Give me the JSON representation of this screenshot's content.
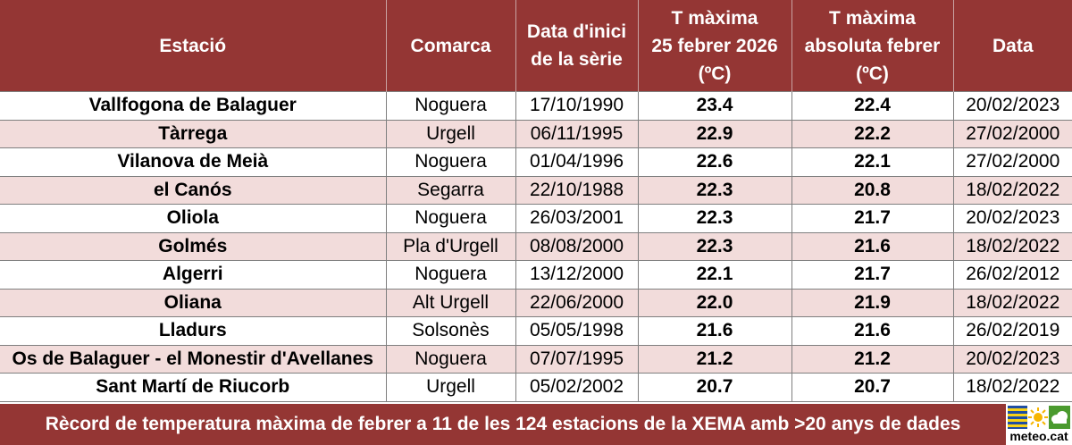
{
  "headers": {
    "station": "Estació",
    "county": "Comarca",
    "start_line1": "Data d'inici",
    "start_line2": "de la sèrie",
    "tmax_line1": "T màxima",
    "tmax_line2": "25 febrer 2026",
    "tmax_line3": "(ºC)",
    "tabs_line1": "T màxima",
    "tabs_line2": "absoluta febrer",
    "tabs_line3": "(ºC)",
    "date": "Data"
  },
  "rows": [
    {
      "station": "Vallfogona de Balaguer",
      "county": "Noguera",
      "start": "17/10/1990",
      "tmax": "23.4",
      "tabs": "22.4",
      "date": "20/02/2023"
    },
    {
      "station": "Tàrrega",
      "county": "Urgell",
      "start": "06/11/1995",
      "tmax": "22.9",
      "tabs": "22.2",
      "date": "27/02/2000"
    },
    {
      "station": "Vilanova de Meià",
      "county": "Noguera",
      "start": "01/04/1996",
      "tmax": "22.6",
      "tabs": "22.1",
      "date": "27/02/2000"
    },
    {
      "station": "el Canós",
      "county": "Segarra",
      "start": "22/10/1988",
      "tmax": "22.3",
      "tabs": "20.8",
      "date": "18/02/2022"
    },
    {
      "station": "Oliola",
      "county": "Noguera",
      "start": "26/03/2001",
      "tmax": "22.3",
      "tabs": "21.7",
      "date": "20/02/2023"
    },
    {
      "station": "Golmés",
      "county": "Pla d'Urgell",
      "start": "08/08/2000",
      "tmax": "22.3",
      "tabs": "21.6",
      "date": "18/02/2022"
    },
    {
      "station": "Algerri",
      "county": "Noguera",
      "start": "13/12/2000",
      "tmax": "22.1",
      "tabs": "21.7",
      "date": "26/02/2012"
    },
    {
      "station": "Oliana",
      "county": "Alt Urgell",
      "start": "22/06/2000",
      "tmax": "22.0",
      "tabs": "21.9",
      "date": "18/02/2022"
    },
    {
      "station": "Lladurs",
      "county": "Solsonès",
      "start": "05/05/1998",
      "tmax": "21.6",
      "tabs": "21.6",
      "date": "26/02/2019"
    },
    {
      "station": "Os de Balaguer - el Monestir d'Avellanes",
      "county": "Noguera",
      "start": "07/07/1995",
      "tmax": "21.2",
      "tabs": "21.2",
      "date": "20/02/2023"
    },
    {
      "station": "Sant Martí de Riucorb",
      "county": "Urgell",
      "start": "05/02/2002",
      "tmax": "20.7",
      "tabs": "20.7",
      "date": "18/02/2022"
    }
  ],
  "footer": {
    "text": "Rècord de temperatura màxima de febrer a 11 de les 124 estacions de la XEMA amb >20 anys de dades",
    "logo_text": "meteo.cat"
  },
  "colors": {
    "header_bg": "#943634",
    "alt_row_bg": "#f2dcdb",
    "grid": "#7f7f7f"
  },
  "icons": [
    "flag-icon",
    "sun-icon",
    "cloud-icon"
  ]
}
